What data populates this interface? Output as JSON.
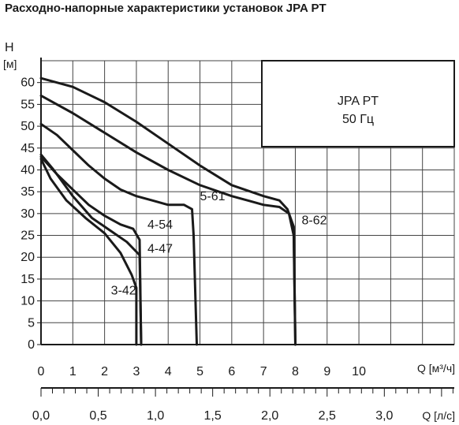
{
  "title": "Расходно-напорные характеристики установок JPA PT",
  "chart_data": {
    "type": "line",
    "ylabel": "H",
    "yunit": "[м]",
    "xlabel": "Q [м³/ч]",
    "x2label": "Q [л/с]",
    "xlim": [
      0,
      13
    ],
    "ylim": [
      0,
      65
    ],
    "xticks": [
      0,
      1,
      2,
      3,
      4,
      5,
      6,
      7,
      8,
      9,
      10
    ],
    "yticks": [
      0,
      5,
      10,
      15,
      20,
      25,
      30,
      35,
      40,
      45,
      50,
      55,
      60
    ],
    "x2ticks": [
      "0,0",
      "0,5",
      "1,0",
      "1,5",
      "2,0",
      "2,5",
      "3,0"
    ],
    "grid": true,
    "legend_box": {
      "line1": "JPA PT",
      "line2": "50 Гц"
    },
    "series": [
      {
        "name": "3-42",
        "x": [
          0,
          0.3,
          0.8,
          1.4,
          2.0,
          2.5,
          2.85,
          3.0,
          3.0
        ],
        "y": [
          42.5,
          38,
          33,
          29,
          25.5,
          21,
          16,
          13,
          0
        ]
      },
      {
        "name": "4-47",
        "x": [
          0,
          0.4,
          1.0,
          1.6,
          2.2,
          2.7,
          3.1,
          3.15
        ],
        "y": [
          43.5,
          40,
          34,
          29,
          26,
          23.5,
          20.5,
          0
        ]
      },
      {
        "name": "4-54",
        "x": [
          0,
          0.5,
          1.0,
          1.5,
          2.0,
          2.5,
          2.9,
          3.1,
          3.15
        ],
        "y": [
          43,
          39,
          35.5,
          32,
          29.5,
          27.5,
          26.5,
          24,
          0
        ]
      },
      {
        "name": "5-61",
        "x": [
          0,
          0.5,
          1.0,
          1.5,
          2.0,
          2.5,
          3.0,
          3.5,
          4.0,
          4.5,
          4.75,
          4.8,
          4.9
        ],
        "y": [
          50.5,
          48,
          44.5,
          41,
          38,
          35.5,
          34,
          33,
          32,
          32,
          31,
          25,
          0
        ]
      },
      {
        "name": "8-62",
        "x": [
          0,
          1,
          2,
          3,
          4,
          5,
          6,
          6.5,
          7,
          7.5,
          7.8,
          7.95,
          8.0
        ],
        "y": [
          57,
          53,
          48.5,
          44,
          40,
          36.5,
          34,
          33,
          32,
          31.5,
          30,
          25,
          0
        ]
      },
      {
        "name": "",
        "x": [
          0,
          1,
          2,
          3,
          4,
          5,
          6,
          7,
          7.5,
          7.75,
          7.95,
          8.0
        ],
        "y": [
          61,
          59,
          55.5,
          51,
          46,
          41,
          36.5,
          34,
          33,
          31,
          27,
          0
        ]
      }
    ],
    "labels": [
      {
        "text": "3-42",
        "x": 2.2,
        "y": 11.5
      },
      {
        "text": "4-47",
        "x": 3.35,
        "y": 21
      },
      {
        "text": "4-54",
        "x": 3.35,
        "y": 26.5
      },
      {
        "text": "5-61",
        "x": 5.0,
        "y": 33
      },
      {
        "text": "8-62",
        "x": 8.2,
        "y": 27.5
      }
    ]
  }
}
